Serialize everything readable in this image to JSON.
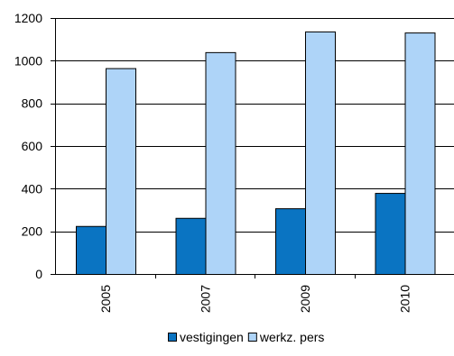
{
  "chart_data": {
    "type": "bar",
    "title": "",
    "xlabel": "",
    "ylabel": "",
    "categories": [
      "2005",
      "2007",
      "2009",
      "2010"
    ],
    "series": [
      {
        "name": "vestigingen",
        "values": [
          225,
          263,
          308,
          380
        ],
        "color": "#0a74c2"
      },
      {
        "name": "werkz. pers",
        "values": [
          965,
          1040,
          1137,
          1132
        ],
        "color": "#aed4f8"
      }
    ],
    "ylim": [
      0,
      1200
    ],
    "yticks": [
      0,
      200,
      400,
      600,
      800,
      1000,
      1200
    ],
    "grid": true,
    "legend_position": "bottom"
  }
}
